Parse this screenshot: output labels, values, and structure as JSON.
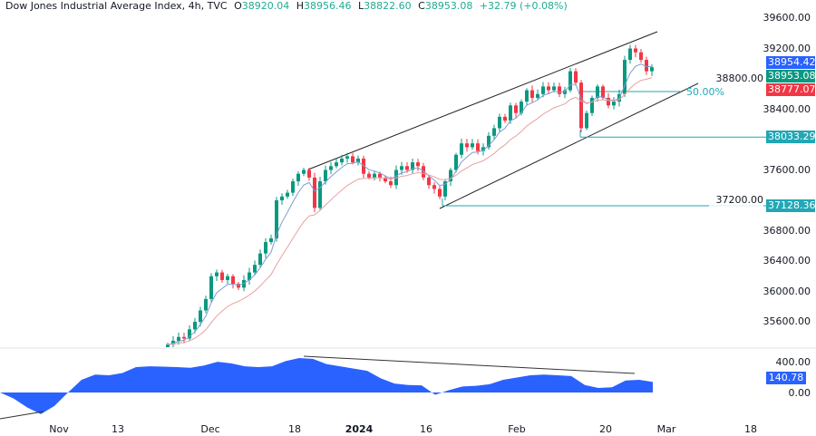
{
  "header": {
    "title": "Dow Jones Industrial Average Index, 4h, TVC",
    "open_label": "O",
    "open": "38920.04",
    "high_label": "H",
    "high": "38956.46",
    "low_label": "L",
    "low": "38822.60",
    "close_label": "C",
    "close": "38953.08",
    "change": "+32.79 (+0.08%)"
  },
  "chart_data": {
    "type": "candlestick",
    "symbol": "Dow Jones Industrial Average Index",
    "interval": "4h",
    "ylim": [
      35300,
      39800
    ],
    "price_ticks": [
      "39600.00",
      "39200.00",
      "38800.00",
      "38400.00",
      "37600.00",
      "37200.00",
      "36800.00",
      "36400.00",
      "36000.00",
      "35600.00"
    ],
    "price_tick_values": [
      39600,
      39200,
      38800,
      38400,
      37600,
      37200,
      36800,
      36400,
      36000,
      35600
    ],
    "closes": [
      35300,
      35350,
      35400,
      35380,
      35500,
      35600,
      35750,
      35900,
      36200,
      36250,
      36150,
      36200,
      36100,
      36050,
      36150,
      36250,
      36350,
      36500,
      36650,
      36700,
      37200,
      37250,
      37300,
      37450,
      37550,
      37600,
      37500,
      37100,
      37450,
      37600,
      37650,
      37700,
      37750,
      37780,
      37700,
      37750,
      37550,
      37500,
      37550,
      37500,
      37450,
      37400,
      37600,
      37650,
      37600,
      37700,
      37650,
      37500,
      37400,
      37350,
      37250,
      37450,
      37600,
      37800,
      37950,
      37900,
      37950,
      37850,
      37900,
      38050,
      38150,
      38300,
      38250,
      38450,
      38350,
      38500,
      38650,
      38550,
      38600,
      38700,
      38650,
      38700,
      38600,
      38650,
      38900,
      38750,
      38150,
      38350,
      38550,
      38700,
      38550,
      38450,
      38500,
      38600,
      39050,
      39200,
      39150,
      39050,
      38900,
      38953
    ],
    "price_tags": [
      {
        "value": "38954.42",
        "color": "#2962ff"
      },
      {
        "value": "38953.08",
        "color": "#089981"
      },
      {
        "value": "38777.07",
        "color": "#f23645"
      }
    ],
    "levels": [
      {
        "value": 38033.29,
        "label": "38033.29"
      },
      {
        "value": 37128.36,
        "label": "37128.36"
      }
    ],
    "fib_label": "50.00%",
    "colors": {
      "up": "#089981",
      "down": "#f23645",
      "fast_ma": "#7e9ccf",
      "slow_ma": "#e8a0a0",
      "level": "#22a7b5",
      "oscillator": "#2962ff"
    },
    "oscillator": {
      "ticks": [
        "400.00",
        "0.00"
      ],
      "last": "140.78",
      "ylim": [
        -400,
        500
      ],
      "values": [
        0,
        -80,
        -200,
        -290,
        -180,
        0,
        170,
        240,
        230,
        260,
        340,
        350,
        345,
        340,
        330,
        360,
        410,
        390,
        350,
        340,
        350,
        420,
        460,
        450,
        380,
        350,
        320,
        290,
        190,
        120,
        100,
        95,
        -30,
        30,
        80,
        90,
        110,
        170,
        200,
        230,
        240,
        230,
        220,
        100,
        60,
        70,
        160,
        170,
        141
      ]
    },
    "time_labels": [
      {
        "t": "Nov",
        "bold": false
      },
      {
        "t": "13",
        "bold": false
      },
      {
        "t": "Dec",
        "bold": false
      },
      {
        "t": "18",
        "bold": false
      },
      {
        "t": "2024",
        "bold": true
      },
      {
        "t": "16",
        "bold": false
      },
      {
        "t": "Feb",
        "bold": false
      },
      {
        "t": "20",
        "bold": false
      },
      {
        "t": "Mar",
        "bold": false
      },
      {
        "t": "18",
        "bold": false
      }
    ]
  }
}
